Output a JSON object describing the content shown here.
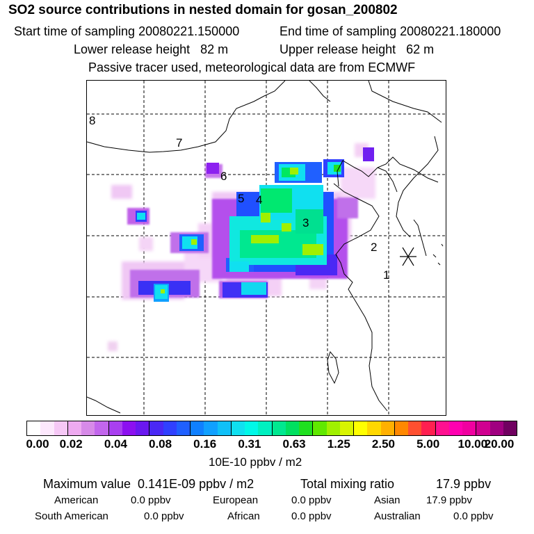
{
  "header": {
    "title": "SO2 source contributions in nested domain for gosan_200802",
    "start_label": "Start time of sampling 20080221.150000",
    "end_label": "End time of sampling 20080221.180000",
    "lower_label": "Lower release height   82 m",
    "upper_label": "Upper release height   62 m",
    "note": "Passive tracer used, meteorological data are from ECMWF"
  },
  "map": {
    "station_icon": "asterisk-receptor-icon",
    "region_labels": [
      {
        "id": "1",
        "text": "1"
      },
      {
        "id": "2",
        "text": "2"
      },
      {
        "id": "3",
        "text": "3"
      },
      {
        "id": "4",
        "text": "4"
      },
      {
        "id": "5",
        "text": "5"
      },
      {
        "id": "6",
        "text": "6"
      },
      {
        "id": "7",
        "text": "7"
      },
      {
        "id": "8",
        "text": "8"
      }
    ]
  },
  "colorbar": {
    "tick_labels": [
      "0.00",
      "0.02",
      "0.04",
      "0.08",
      "0.16",
      "0.31",
      "0.63",
      "1.25",
      "2.50",
      "5.00",
      "10.00",
      "20.00"
    ],
    "unit": "10E-10 ppbv / m2",
    "colors": [
      "#ffffff",
      "#fde8fd",
      "#f6c8f6",
      "#eeaaf0",
      "#d78ae8",
      "#c266ec",
      "#a93ff0",
      "#8c10f0",
      "#6a18f0",
      "#4a28f5",
      "#3040ff",
      "#2060ff",
      "#1080ff",
      "#10a0ff",
      "#10c0f8",
      "#10e0f0",
      "#00f8e8",
      "#00f0c0",
      "#00e890",
      "#00e060",
      "#20e020",
      "#60e800",
      "#a0f000",
      "#d8f400",
      "#ffff00",
      "#ffd800",
      "#ffb000",
      "#ff8800",
      "#ff5030",
      "#ff2050",
      "#ff1090",
      "#ff00b0",
      "#f000a0",
      "#d00090",
      "#a00080",
      "#700060"
    ]
  },
  "footer": {
    "max_label": "Maximum value  0.141E-09 ppbv / m2",
    "total_label": "Total mixing ratio",
    "total_value": "17.9 ppbv",
    "american_label": "American",
    "american_value": "0.0 ppbv",
    "european_label": "European",
    "european_value": "0.0 ppbv",
    "asian_label": "Asian",
    "asian_value": "17.9 ppbv",
    "south_american_label": "South American",
    "south_american_value": "0.0 ppbv",
    "african_label": "African",
    "african_value": "0.0 ppbv",
    "australian_label": "Australian",
    "australian_value": "0.0 ppbv"
  }
}
